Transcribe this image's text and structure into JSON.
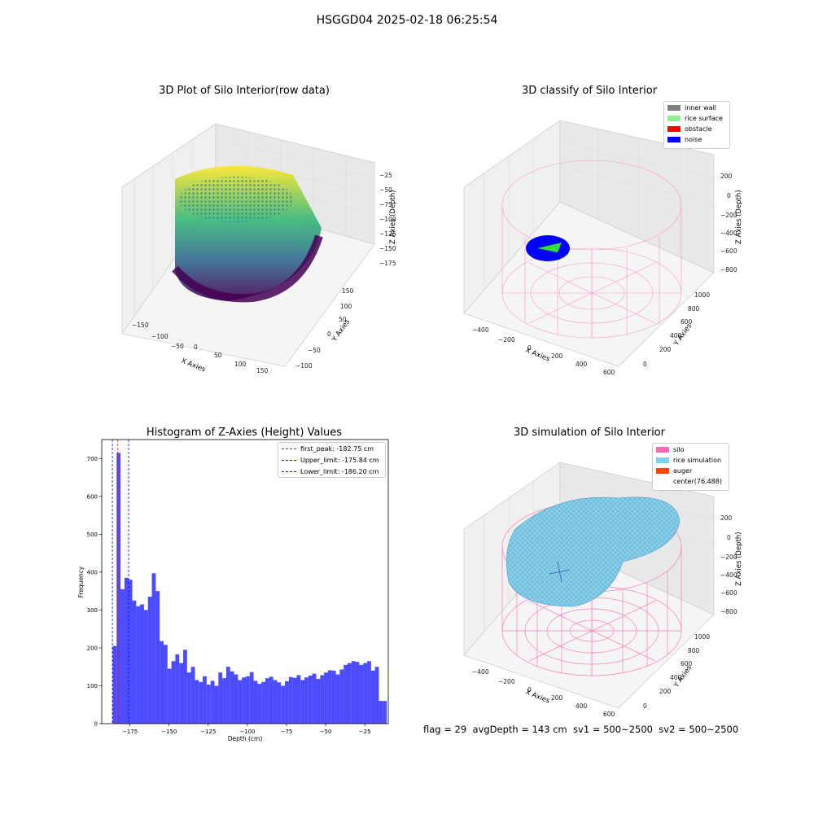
{
  "figure": {
    "suptitle": "HSGGD04 2025-02-18 06:25:54"
  },
  "panels": {
    "raw": {
      "title": "3D Plot of Silo Interior(row data)",
      "xlabel": "X Axies",
      "ylabel": "Y Axies",
      "zlabel": "Z Axies (Depth)",
      "xticks": [
        "−150",
        "−100",
        "−50",
        "0",
        "50",
        "100",
        "150"
      ],
      "yticks": [
        "−100",
        "−50",
        "0",
        "50",
        "100",
        "150"
      ],
      "zticks": [
        "−25",
        "−50",
        "−75",
        "−100",
        "−125",
        "−150",
        "−175"
      ]
    },
    "classify": {
      "title": "3D classify of Silo Interior",
      "xlabel": "X Axies",
      "ylabel": "Y Axies",
      "zlabel": "Z Axies (Depth)",
      "xticks": [
        "−400",
        "−200",
        "0",
        "200",
        "400",
        "600"
      ],
      "yticks": [
        "0",
        "200",
        "400",
        "600",
        "800",
        "1000"
      ],
      "zticks": [
        "200",
        "0",
        "−200",
        "−400",
        "−600",
        "−800"
      ],
      "legend": [
        {
          "label": "inner wall",
          "color": "#808080"
        },
        {
          "label": "rice surface",
          "color": "#90ee90"
        },
        {
          "label": "obstacle",
          "color": "#ff0000"
        },
        {
          "label": "noise",
          "color": "#0000ff"
        }
      ]
    },
    "simulation": {
      "title": "3D simulation of Silo Interior",
      "xlabel": "X Axies",
      "ylabel": "Y Axies",
      "zlabel": "Z Axies (Depth)",
      "xticks": [
        "−400",
        "−200",
        "0",
        "200",
        "400",
        "600"
      ],
      "yticks": [
        "0",
        "200",
        "400",
        "600",
        "800",
        "1000"
      ],
      "zticks": [
        "200",
        "0",
        "−200",
        "−400",
        "−600",
        "−800"
      ],
      "legend": [
        {
          "label": "silo",
          "color": "#ff69b4"
        },
        {
          "label": "rice simulation",
          "color": "#87ceeb"
        },
        {
          "label": "auger",
          "color": "#ff4500"
        },
        {
          "label": "center(76,488)",
          "color": "#ffffff"
        }
      ]
    }
  },
  "chart_data": {
    "type": "bar",
    "title": "Histogram of Z-Axies (Height) Values",
    "xlabel": "Depth (cm)",
    "ylabel": "Frequency",
    "xlim": [
      -193,
      -10
    ],
    "ylim": [
      0,
      750
    ],
    "xticks": [
      -175,
      -150,
      -125,
      -100,
      -75,
      -50,
      -25
    ],
    "xtick_labels": [
      "−175",
      "−150",
      "−125",
      "−100",
      "−75",
      "−50",
      "−25"
    ],
    "yticks": [
      0,
      100,
      200,
      300,
      400,
      500,
      600,
      700
    ],
    "bar_color": "#0000ff",
    "bin_edges": [
      -186.0,
      -183.5,
      -181.0,
      -178.5,
      -176.0,
      -173.5,
      -171.0,
      -168.5,
      -166.0,
      -163.5,
      -161.0,
      -158.5,
      -156.0,
      -153.5,
      -151.0,
      -148.5,
      -146.0,
      -143.5,
      -141.0,
      -138.5,
      -136.0,
      -133.5,
      -131.0,
      -128.5,
      -126.0,
      -123.5,
      -121.0,
      -118.5,
      -116.0,
      -113.5,
      -111.0,
      -108.5,
      -106.0,
      -103.5,
      -101.0,
      -98.5,
      -96.0,
      -93.5,
      -91.0,
      -88.5,
      -86.0,
      -83.5,
      -81.0,
      -78.5,
      -76.0,
      -73.5,
      -71.0,
      -68.5,
      -66.0,
      -63.5,
      -61.0,
      -58.5,
      -56.0,
      -53.5,
      -51.0,
      -48.5,
      -46.0,
      -43.5,
      -41.0,
      -38.5,
      -36.0,
      -33.5,
      -31.0,
      -28.5,
      -26.0,
      -23.5,
      -21.0,
      -18.5,
      -16.0,
      -13.5,
      -11.0
    ],
    "values": [
      205,
      715,
      355,
      385,
      380,
      325,
      310,
      315,
      300,
      335,
      397,
      350,
      218,
      208,
      145,
      165,
      183,
      160,
      195,
      135,
      150,
      115,
      110,
      125,
      103,
      113,
      100,
      135,
      120,
      150,
      138,
      130,
      115,
      122,
      125,
      136,
      113,
      105,
      110,
      120,
      124,
      115,
      109,
      100,
      112,
      123,
      121,
      128,
      115,
      122,
      127,
      132,
      118,
      128,
      135,
      141,
      140,
      130,
      143,
      155,
      160,
      165,
      163,
      155,
      160,
      165,
      140,
      150,
      60,
      60
    ],
    "vlines": [
      {
        "label": "first_peak: -182.75 cm",
        "x": -182.75,
        "color": "#ff0000"
      },
      {
        "label": "Upper_limit: -175.84 cm",
        "x": -175.84,
        "color": "#0000ff"
      },
      {
        "label": "Lower_limit: -186.20 cm",
        "x": -186.2,
        "color": "#0000ff"
      }
    ]
  },
  "footer": {
    "text": "flag = 29  avgDepth = 143 cm  sv1 = 500~2500  sv2 = 500~2500"
  }
}
